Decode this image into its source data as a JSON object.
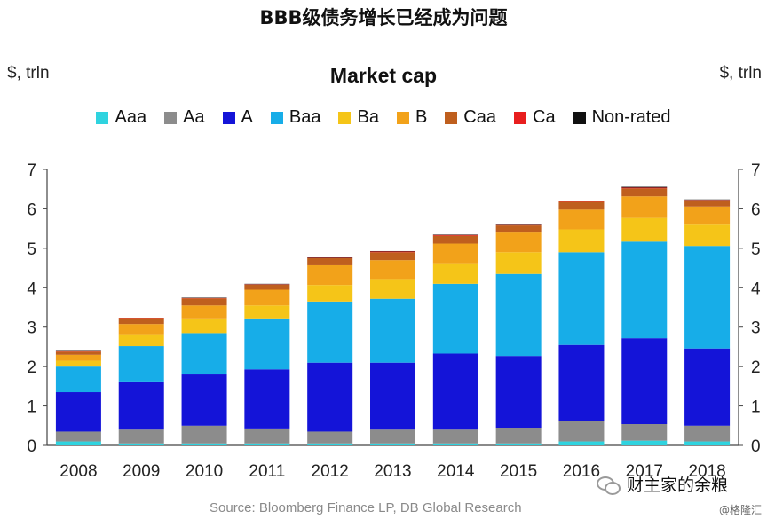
{
  "header": {
    "title": "BBB级债务增长已经成为问题"
  },
  "units": {
    "left": "$, trln",
    "right": "$, trln"
  },
  "source": "Source: Bloomberg Finance LP, DB Global Research",
  "wechat": {
    "label": "财主家的余粮",
    "icon": "wechat-icon"
  },
  "watermark": "@格隆汇",
  "colors": {
    "Aaa": "#2fd3df",
    "Aa": "#8c8c8c",
    "A": "#1414d8",
    "Baa": "#17ade8",
    "Ba": "#f5c518",
    "B": "#f2a21a",
    "Caa": "#bf5f1e",
    "Ca": "#e81e1e",
    "Non-rated": "#111111"
  },
  "chart_data": {
    "type": "bar",
    "stacked": true,
    "title": "Market cap",
    "ylabel": "$, trln",
    "ylim": [
      0,
      7
    ],
    "yticks": [
      0,
      1,
      2,
      3,
      4,
      5,
      6,
      7
    ],
    "grid": false,
    "legend_position": "top",
    "categories": [
      "2008",
      "2009",
      "2010",
      "2011",
      "2012",
      "2013",
      "2014",
      "2015",
      "2016",
      "2017",
      "2018"
    ],
    "series": [
      {
        "name": "Aaa",
        "values": [
          0.1,
          0.05,
          0.05,
          0.05,
          0.05,
          0.05,
          0.05,
          0.05,
          0.1,
          0.12,
          0.1
        ]
      },
      {
        "name": "Aa",
        "values": [
          0.25,
          0.35,
          0.45,
          0.38,
          0.3,
          0.35,
          0.35,
          0.4,
          0.52,
          0.42,
          0.4
        ]
      },
      {
        "name": "A",
        "values": [
          1.0,
          1.2,
          1.3,
          1.5,
          1.75,
          1.7,
          1.93,
          1.82,
          1.93,
          2.18,
          1.96
        ]
      },
      {
        "name": "Baa",
        "values": [
          0.65,
          0.92,
          1.05,
          1.27,
          1.55,
          1.62,
          1.77,
          2.08,
          2.35,
          2.45,
          2.6
        ]
      },
      {
        "name": "Ba",
        "values": [
          0.15,
          0.28,
          0.35,
          0.35,
          0.42,
          0.48,
          0.5,
          0.55,
          0.58,
          0.6,
          0.54
        ]
      },
      {
        "name": "B",
        "values": [
          0.15,
          0.28,
          0.35,
          0.4,
          0.5,
          0.5,
          0.52,
          0.5,
          0.5,
          0.55,
          0.46
        ]
      },
      {
        "name": "Caa",
        "values": [
          0.08,
          0.13,
          0.18,
          0.13,
          0.18,
          0.2,
          0.2,
          0.18,
          0.2,
          0.2,
          0.16
        ]
      },
      {
        "name": "Ca",
        "values": [
          0.01,
          0.01,
          0.01,
          0.01,
          0.01,
          0.02,
          0.02,
          0.01,
          0.01,
          0.02,
          0.01
        ]
      },
      {
        "name": "Non-rated",
        "values": [
          0.01,
          0.01,
          0.01,
          0.01,
          0.01,
          0.01,
          0.01,
          0.01,
          0.01,
          0.02,
          0.01
        ]
      }
    ]
  }
}
